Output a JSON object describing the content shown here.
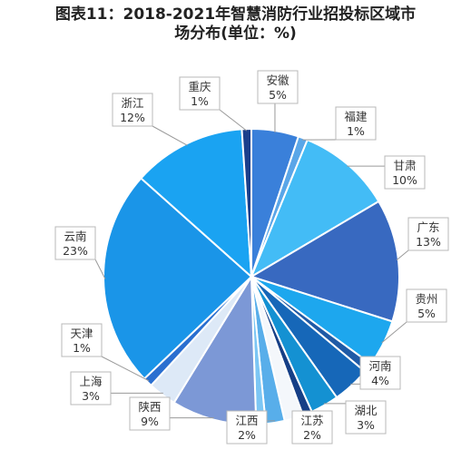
{
  "chart_data": {
    "type": "pie",
    "title_line1": "图表11：2018-2021年智慧消防行业招投标区域市",
    "title_line2": "场分布(单位：%)",
    "slices": [
      {
        "label": "安徽",
        "value": 5,
        "display": "5%",
        "color": "#3A80DA"
      },
      {
        "label": "福建",
        "value": 1,
        "display": "1%",
        "color": "#5AA6E8"
      },
      {
        "label": "甘肃",
        "value": 10,
        "display": "10%",
        "color": "#43BCF6"
      },
      {
        "label": "广东",
        "value": 13,
        "display": "13%",
        "color": "#3869C0"
      },
      {
        "label": "贵州",
        "value": 5,
        "display": "5%",
        "color": "#1DA7EE"
      },
      {
        "label": "",
        "value": 1,
        "display": "",
        "color": "#1F5AA6"
      },
      {
        "label": "河南",
        "value": 4,
        "display": "4%",
        "color": "#1667B8"
      },
      {
        "label": "湖北",
        "value": 3,
        "display": "3%",
        "color": "#1491D2"
      },
      {
        "label": "",
        "value": 1,
        "display": "",
        "color": "#163F86"
      },
      {
        "label": "江苏",
        "value": 2,
        "display": "2%",
        "color": "#F4F7FB"
      },
      {
        "label": "江西",
        "value": 2,
        "display": "2%",
        "color": "#58AEEA"
      },
      {
        "label": "",
        "value": 1,
        "display": "",
        "color": "#7CC6F4"
      },
      {
        "label": "陕西",
        "value": 9,
        "display": "9%",
        "color": "#7C98D6"
      },
      {
        "label": "上海",
        "value": 3,
        "display": "3%",
        "color": "#DDE9F7"
      },
      {
        "label": "天津",
        "value": 1,
        "display": "1%",
        "color": "#2A6FD0"
      },
      {
        "label": "云南",
        "value": 23,
        "display": "23%",
        "color": "#1A95E8"
      },
      {
        "label": "浙江",
        "value": 12,
        "display": "12%",
        "color": "#1AA3F2"
      },
      {
        "label": "重庆",
        "value": 1,
        "display": "1%",
        "color": "#1B3F8C"
      }
    ]
  }
}
